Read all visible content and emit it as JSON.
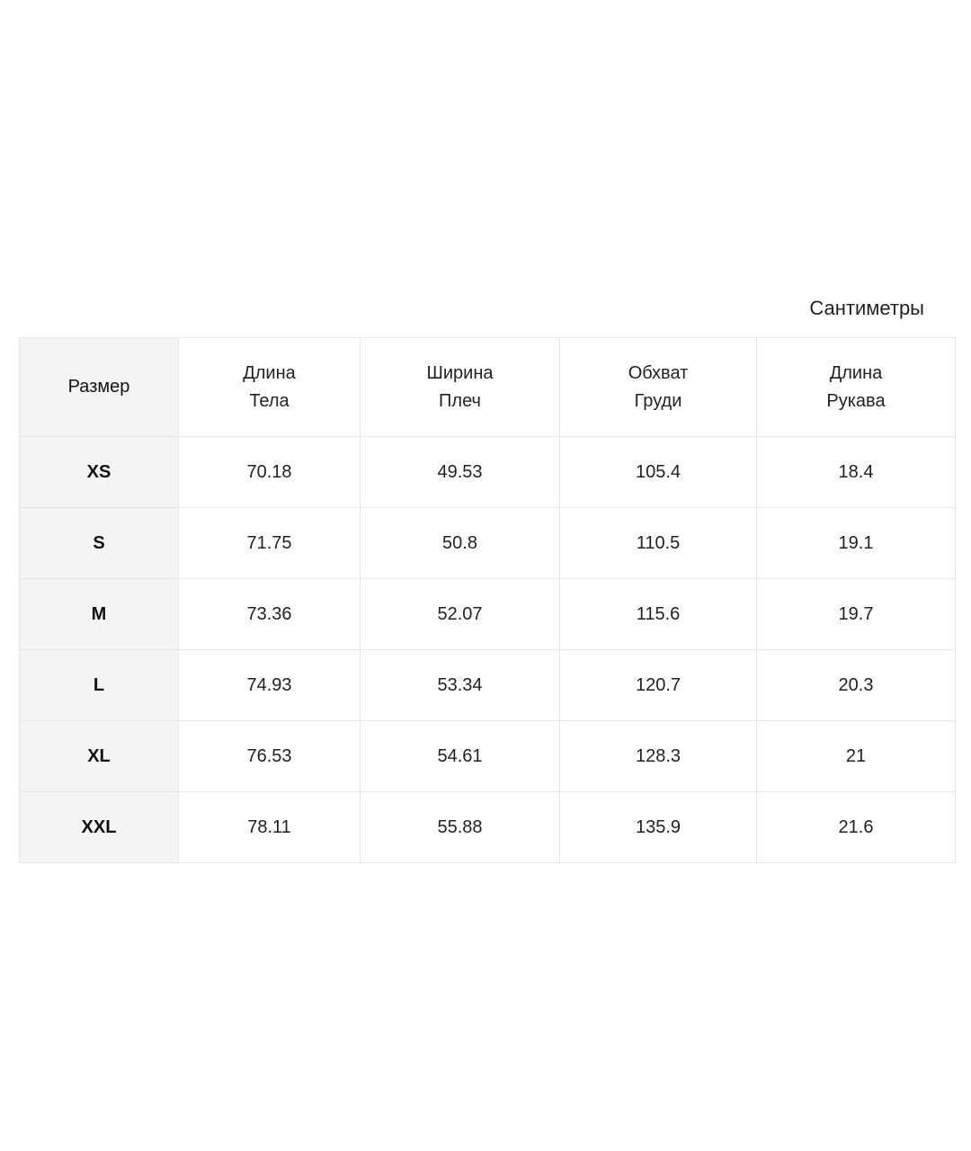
{
  "unit_label": "Сантиметры",
  "table": {
    "headers": [
      [
        "Размер"
      ],
      [
        "Длина",
        "Тела"
      ],
      [
        "Ширина",
        "Плеч"
      ],
      [
        "Обхват",
        "Груди"
      ],
      [
        "Длина",
        "Рукава"
      ]
    ],
    "rows": [
      [
        "XS",
        "70.18",
        "49.53",
        "105.4",
        "18.4"
      ],
      [
        "S",
        "71.75",
        "50.8",
        "110.5",
        "19.1"
      ],
      [
        "M",
        "73.36",
        "52.07",
        "115.6",
        "19.7"
      ],
      [
        "L",
        "74.93",
        "53.34",
        "120.7",
        "20.3"
      ],
      [
        "XL",
        "76.53",
        "54.61",
        "128.3",
        "21"
      ],
      [
        "XXL",
        "78.11",
        "55.88",
        "135.9",
        "21.6"
      ]
    ]
  }
}
